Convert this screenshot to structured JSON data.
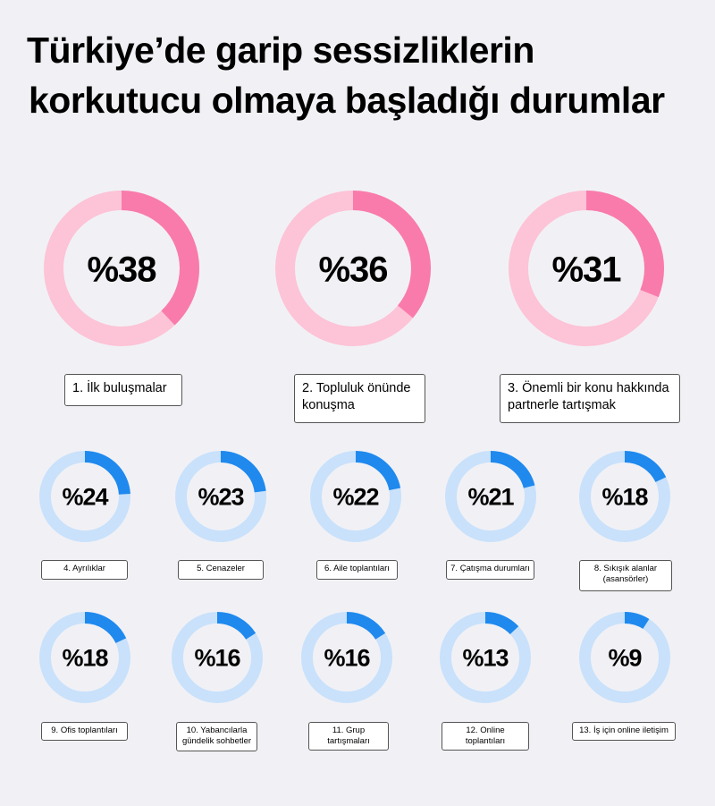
{
  "title_line1": "Türkiye’de garip sessizliklerin",
  "title_line2": "korkutucu olmaya başladığı durumlar",
  "colors": {
    "background": "#f1f1f5",
    "pink_highlight": "#f97bab",
    "pink_track": "#fdc3d6",
    "blue_highlight": "#1f89ee",
    "blue_track": "#c9e1fb"
  },
  "chart_data": {
    "type": "donut",
    "unit_prefix": "%",
    "items": [
      {
        "rank": 1,
        "label": "1.  İlk buluşmalar",
        "value": 38
      },
      {
        "rank": 2,
        "label": "2. Topluluk önünde konuşma",
        "value": 36
      },
      {
        "rank": 3,
        "label": "3. Önemli bir konu hakkında partnerle tartışmak",
        "value": 31
      },
      {
        "rank": 4,
        "label": "4. Ayrılıklar",
        "value": 24
      },
      {
        "rank": 5,
        "label": "5. Cenazeler",
        "value": 23
      },
      {
        "rank": 6,
        "label": "6. Aile toplantıları",
        "value": 22
      },
      {
        "rank": 7,
        "label": "7. Çatışma durumları",
        "value": 21
      },
      {
        "rank": 8,
        "label": "8. Sıkışık alanlar (asansörler)",
        "value": 18
      },
      {
        "rank": 9,
        "label": "9. Ofis toplantıları",
        "value": 18
      },
      {
        "rank": 10,
        "label": "10. Yabancılarla gündelik sohbetler",
        "value": 16
      },
      {
        "rank": 11,
        "label": "11. Grup tartışmaları",
        "value": 16
      },
      {
        "rank": 12,
        "label": "12. Online toplantıları",
        "value": 13
      },
      {
        "rank": 13,
        "label": "13. İş için online iletişim",
        "value": 9
      }
    ]
  }
}
